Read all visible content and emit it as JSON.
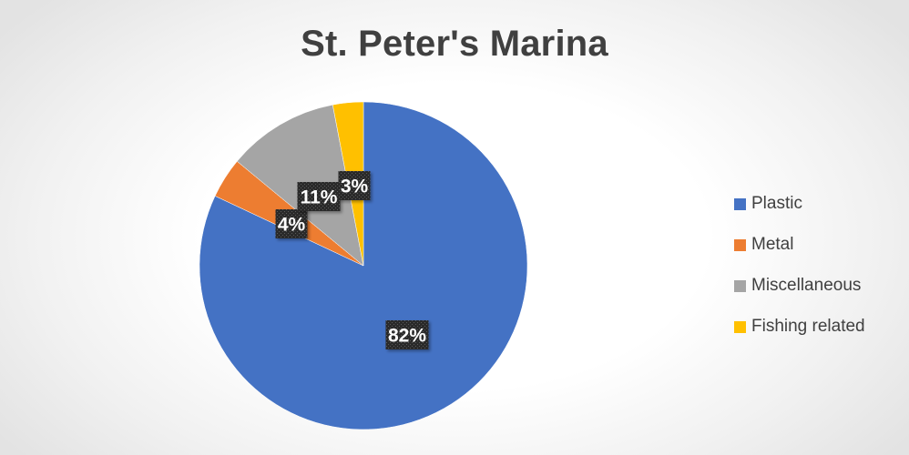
{
  "chart_data": {
    "type": "pie",
    "title": "St. Peter's Marina",
    "categories": [
      "Plastic",
      "Metal",
      "Miscellaneous",
      "Fishing related"
    ],
    "values": [
      82,
      4,
      11,
      3
    ],
    "data_labels": [
      "82%",
      "4%",
      "11%",
      "3%"
    ],
    "colors": [
      "#4472C4",
      "#ED7D31",
      "#A5A5A5",
      "#FFC000"
    ],
    "start_angle": "12 o'clock",
    "direction": "clockwise",
    "legend_position": "right",
    "label_style": "dark patterned box, white bold text"
  }
}
